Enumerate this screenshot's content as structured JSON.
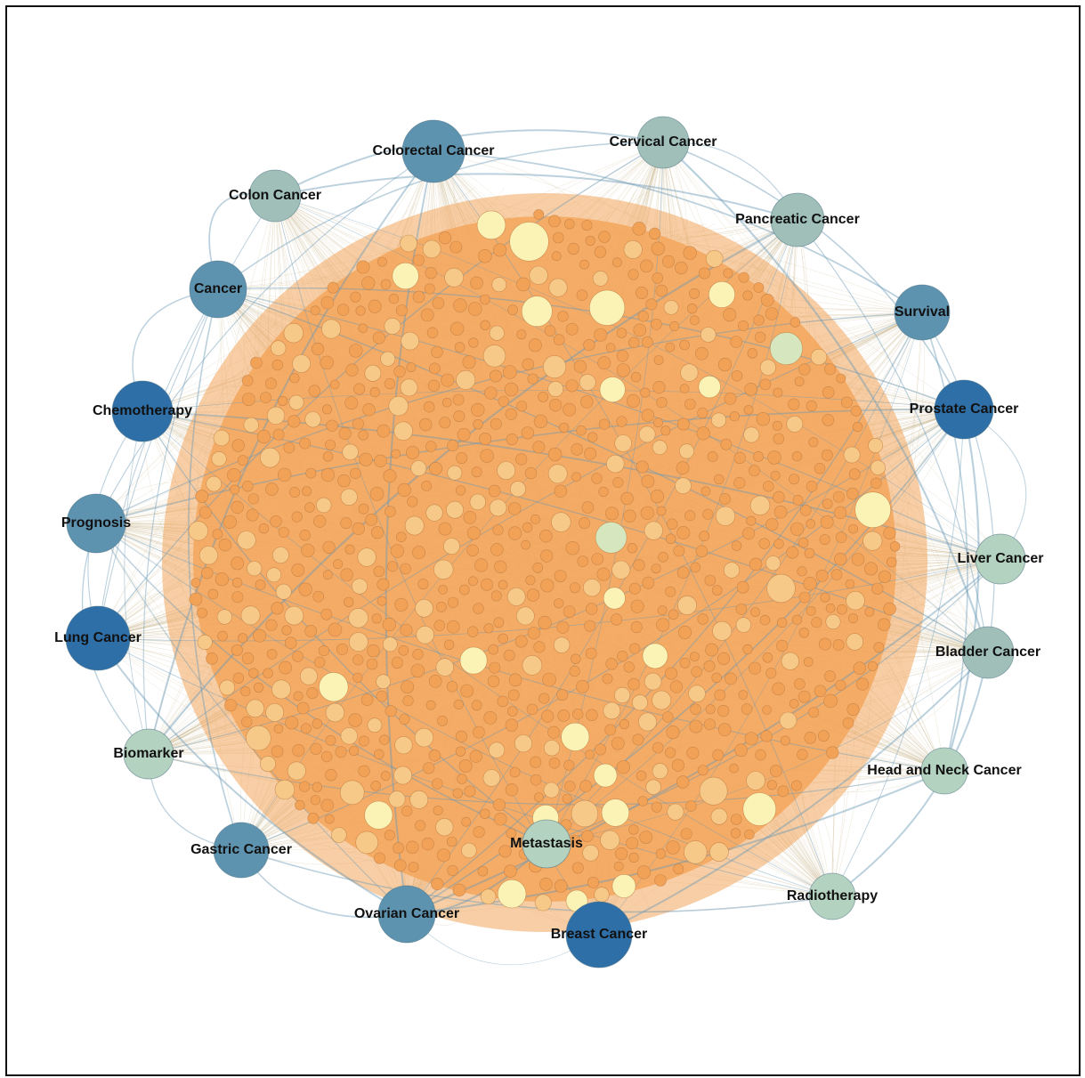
{
  "diagram": {
    "type": "network",
    "colors": {
      "hub_dark": "#2f6fa8",
      "hub_mid": "#5e93b0",
      "hub_light": "#9fbfb8",
      "hub_pale": "#b4d2c0",
      "node_orange": "#f2a257",
      "node_pale_orange": "#f7c988",
      "node_yellow": "#fbf3b6",
      "node_green": "#d6e6bf",
      "cloud": "#f3a65c",
      "hub_edge": "#6a9ab5",
      "outer_edge": "#c8b48a"
    },
    "hubs": [
      {
        "label": "Colorectal Cancer",
        "shade": "mid"
      },
      {
        "label": "Cervical Cancer",
        "shade": "light"
      },
      {
        "label": "Colon Cancer",
        "shade": "light"
      },
      {
        "label": "Pancreatic Cancer",
        "shade": "light"
      },
      {
        "label": "Cancer",
        "shade": "mid"
      },
      {
        "label": "Survival",
        "shade": "mid"
      },
      {
        "label": "Chemotherapy",
        "shade": "dark"
      },
      {
        "label": "Prostate Cancer",
        "shade": "dark"
      },
      {
        "label": "Prognosis",
        "shade": "mid"
      },
      {
        "label": "Liver Cancer",
        "shade": "pale"
      },
      {
        "label": "Lung Cancer",
        "shade": "dark"
      },
      {
        "label": "Bladder Cancer",
        "shade": "light"
      },
      {
        "label": "Biomarker",
        "shade": "pale"
      },
      {
        "label": "Head and Neck Cancer",
        "shade": "pale"
      },
      {
        "label": "Gastric Cancer",
        "shade": "mid"
      },
      {
        "label": "Metastasis",
        "shade": "pale"
      },
      {
        "label": "Radiotherapy",
        "shade": "pale"
      },
      {
        "label": "Ovarian Cancer",
        "shade": "mid"
      },
      {
        "label": "Breast Cancer",
        "shade": "dark"
      }
    ]
  }
}
